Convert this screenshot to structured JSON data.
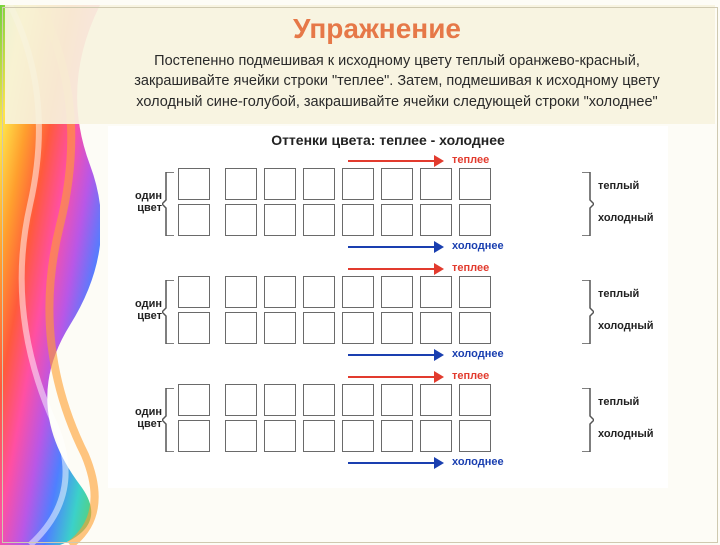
{
  "title": "Упражнение",
  "instructions": "Постепенно подмешивая к исходному цвету теплый оранжево-красный, закрашивайте ячейки строки \"теплее\". Затем, подмешивая к исходному цвету холодный сине-голубой, закрашивайте ячейки следующей строки \"холоднее\"",
  "diagram_title": "Оттенки цвета: теплее - холоднее",
  "left_label_line1": "один",
  "left_label_line2": "цвет",
  "warm_arrow": {
    "text": "теплее",
    "color": "#e23b2e"
  },
  "cold_arrow": {
    "text": "холоднее",
    "color": "#1a3fb0"
  },
  "right_warm": "теплый",
  "right_cold": "холодный",
  "cells_per_row": 8,
  "blocks_count": 3,
  "cell_border": "#6a6a6a",
  "bracket_color": "#555555",
  "rainbow_colors": [
    "#6fd13b",
    "#ffe54a",
    "#ff9f2e",
    "#ff5a3c",
    "#ff4fa3",
    "#b957e6",
    "#4f7fff",
    "#3bd1c9",
    "#6fd13b",
    "#ffe54a"
  ]
}
